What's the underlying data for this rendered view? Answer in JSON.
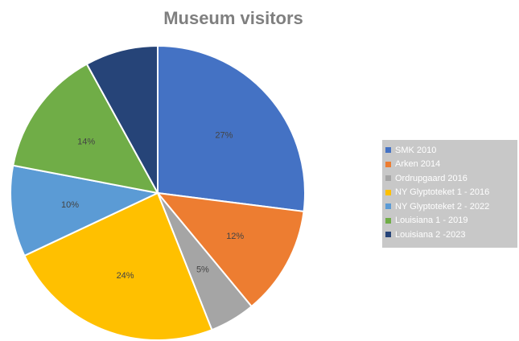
{
  "chart_data": {
    "type": "pie",
    "title": "Museum visitors",
    "legend_position": "right",
    "slices": [
      {
        "name": "SMK 2010",
        "value": 27,
        "label": "27%",
        "color": "#4472c4"
      },
      {
        "name": "Arken 2014",
        "value": 12,
        "label": "12%",
        "color": "#ed7d31"
      },
      {
        "name": "Ordrupgaard 2016",
        "value": 5,
        "label": "5%",
        "color": "#a5a5a5"
      },
      {
        "name": "NY Glyptoteket 1 - 2016",
        "value": 24,
        "label": "24%",
        "color": "#ffc000"
      },
      {
        "name": "NY Glyptoteket 2 - 2022",
        "value": 10,
        "label": "10%",
        "color": "#5b9bd5"
      },
      {
        "name": "Louisiana 1 - 2019",
        "value": 14,
        "label": "14%",
        "color": "#70ad47"
      },
      {
        "name": "Louisiana 2 -2023",
        "value": 8,
        "label": "",
        "color": "#264478"
      }
    ]
  }
}
